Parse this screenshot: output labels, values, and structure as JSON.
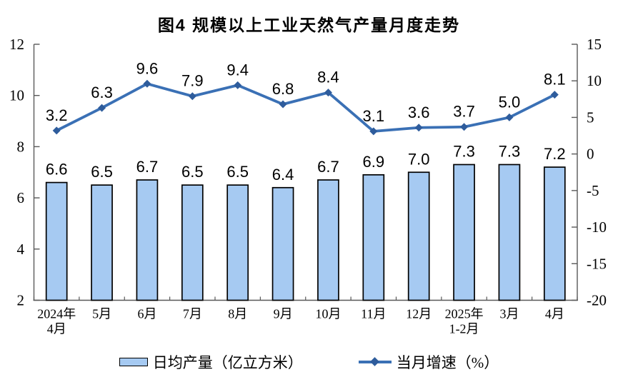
{
  "title": "图4  规模以上工业天然气产量月度走势",
  "colors": {
    "bar_fill": "#A6CAF2",
    "bar_border": "#000000",
    "line": "#3A70B5",
    "marker": "#2E5C9C",
    "axis": "#595959",
    "text": "#000000"
  },
  "chart_data": {
    "type": "bar+line",
    "title": "图4  规模以上工业天然气产量月度走势",
    "categories": [
      [
        "2024年",
        "4月"
      ],
      [
        "5月"
      ],
      [
        "6月"
      ],
      [
        "7月"
      ],
      [
        "8月"
      ],
      [
        "9月"
      ],
      [
        "10月"
      ],
      [
        "11月"
      ],
      [
        "12月"
      ],
      [
        "2025年",
        "1-2月"
      ],
      [
        "3月"
      ],
      [
        "4月"
      ]
    ],
    "series": [
      {
        "name": "日均产量（亿立方米）",
        "type": "bar",
        "axis": "left",
        "values": [
          6.6,
          6.5,
          6.7,
          6.5,
          6.5,
          6.4,
          6.7,
          6.9,
          7.0,
          7.3,
          7.3,
          7.2
        ]
      },
      {
        "name": "当月增速（%）",
        "type": "line",
        "axis": "right",
        "values": [
          3.2,
          6.3,
          9.6,
          7.9,
          9.4,
          6.8,
          8.4,
          3.1,
          3.6,
          3.7,
          5.0,
          8.1
        ]
      }
    ],
    "left_axis": {
      "min": 2,
      "max": 12,
      "ticks": [
        2,
        4,
        6,
        8,
        10,
        12
      ]
    },
    "right_axis": {
      "min": -20,
      "max": 15,
      "ticks": [
        -20,
        -15,
        -10,
        -5,
        0,
        5,
        10,
        15
      ]
    },
    "grid": false,
    "legend_position": "bottom",
    "data_labels": true
  }
}
